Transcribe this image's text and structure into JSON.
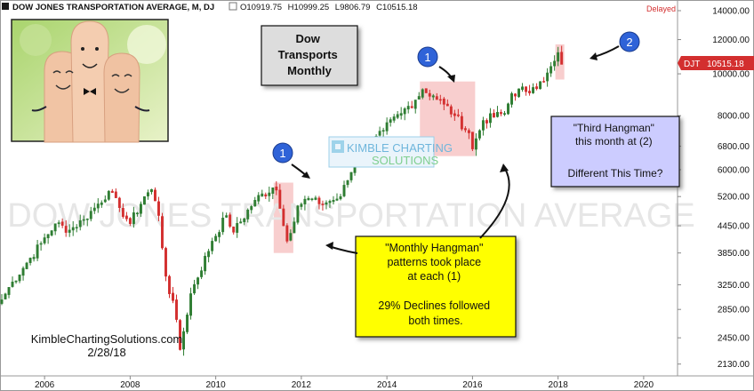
{
  "header": {
    "symbol_title": "DOW JONES TRANSPORTATION AVERAGE, M, DJ",
    "ohlc": {
      "open_label": "O",
      "open": "10919.75",
      "high_label": "H",
      "high": "10999.25",
      "low_label": "L",
      "low": "9806.79",
      "close_label": "C",
      "close": "10515.18"
    },
    "delayed_label": "Delayed"
  },
  "price_tag": {
    "symbol": "DJT",
    "value": "10515.18",
    "color": "#d32f2f"
  },
  "annotations": {
    "title_box": {
      "lines": [
        "Dow",
        "Transports",
        "Monthly"
      ]
    },
    "third_hangman_box": {
      "lines": [
        "\"Third Hangman\"",
        "this month at (2)",
        "",
        "Different This Time?"
      ]
    },
    "monthly_hangman_box": {
      "lines": [
        "\"Monthly Hangman\"",
        "patterns took place",
        "at each (1)",
        "",
        "29% Declines followed",
        "both times."
      ]
    },
    "markers": [
      {
        "label": "1",
        "date": "2011-06"
      },
      {
        "label": "1",
        "date": "2014-11"
      },
      {
        "label": "2",
        "date": "2018-01"
      }
    ],
    "watermark": "DOW JONES TRANSPORTATION AVERAGE",
    "logo": {
      "line1": "KIMBLE CHARTING",
      "line2": "SOLUTIONS"
    },
    "credit": {
      "site": "KimbleChartingSolutions.com",
      "date": "2/28/18"
    }
  },
  "colors": {
    "up": "#2e7d32",
    "down": "#d32f2f",
    "highlight": "#f7c5c5",
    "marker_fill": "#2f63d8",
    "yellow_box": "#ffff00",
    "lavender_box": "#ccccff",
    "title_box": "#dddddd"
  },
  "chart_data": {
    "type": "candlestick",
    "frequency": "monthly",
    "y_scale": "log",
    "ylim": [
      2000,
      14000
    ],
    "y_ticks": [
      2130,
      2450,
      2850,
      3250,
      3850,
      4450,
      5200,
      6000,
      6800,
      8000,
      10000,
      12000,
      14000
    ],
    "y_tick_labels": [
      "2130.00",
      "2450.00",
      "2850.00",
      "3250.00",
      "3850.00",
      "4450.00",
      "5200.00",
      "6000.00",
      "6800.00",
      "8000.00",
      "10000.00",
      "12000.00",
      "14000.00"
    ],
    "x_range": [
      "2005-01",
      "2020-10"
    ],
    "x_ticks": [
      "2006",
      "2008",
      "2010",
      "2012",
      "2014",
      "2016",
      "2018",
      "2020"
    ],
    "highlight_ranges": [
      {
        "from": "2011-06",
        "to": "2011-10"
      },
      {
        "from": "2014-11",
        "to": "2016-01"
      },
      {
        "from": "2018-01",
        "to": "2018-02"
      }
    ],
    "close_anchors": [
      [
        "2005-01",
        3000
      ],
      [
        "2005-04",
        3300
      ],
      [
        "2005-08",
        3650
      ],
      [
        "2005-12",
        4050
      ],
      [
        "2006-04",
        4500
      ],
      [
        "2006-08",
        4350
      ],
      [
        "2006-12",
        4600
      ],
      [
        "2007-04",
        5000
      ],
      [
        "2007-07",
        5350
      ],
      [
        "2007-10",
        4900
      ],
      [
        "2008-01",
        4500
      ],
      [
        "2008-05",
        5200
      ],
      [
        "2008-07",
        5400
      ],
      [
        "2008-09",
        4700
      ],
      [
        "2008-11",
        3400
      ],
      [
        "2009-02",
        2700
      ],
      [
        "2009-03",
        2300
      ],
      [
        "2009-06",
        3100
      ],
      [
        "2009-12",
        4100
      ],
      [
        "2010-04",
        4700
      ],
      [
        "2010-06",
        4300
      ],
      [
        "2010-12",
        5100
      ],
      [
        "2011-05",
        5450
      ],
      [
        "2011-06",
        5380
      ],
      [
        "2011-08",
        4450
      ],
      [
        "2011-09",
        4100
      ],
      [
        "2011-12",
        4950
      ],
      [
        "2012-03",
        5150
      ],
      [
        "2012-06",
        5000
      ],
      [
        "2012-10",
        5100
      ],
      [
        "2012-12",
        5200
      ],
      [
        "2013-04",
        6200
      ],
      [
        "2013-12",
        7400
      ],
      [
        "2014-05",
        8100
      ],
      [
        "2014-09",
        8700
      ],
      [
        "2014-11",
        9200
      ],
      [
        "2015-02",
        8900
      ],
      [
        "2015-05",
        8500
      ],
      [
        "2015-08",
        8000
      ],
      [
        "2015-12",
        7300
      ],
      [
        "2016-01",
        6700
      ],
      [
        "2016-04",
        7800
      ],
      [
        "2016-10",
        8100
      ],
      [
        "2016-12",
        9000
      ],
      [
        "2017-06",
        9300
      ],
      [
        "2017-09",
        9600
      ],
      [
        "2017-12",
        10700
      ],
      [
        "2018-01",
        11200
      ],
      [
        "2018-02",
        10515
      ]
    ]
  }
}
